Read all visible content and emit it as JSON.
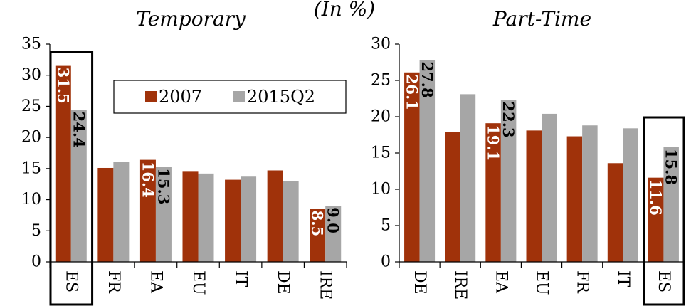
{
  "figure": {
    "title": "(In %)"
  },
  "colors": {
    "y2007": "#A0320A",
    "y2015": "#A6A6A6"
  },
  "chart_data": [
    {
      "type": "bar",
      "title": "Temporary",
      "categories": [
        "ES",
        "FR",
        "EA",
        "EU",
        "IT",
        "DE",
        "IRE"
      ],
      "series": [
        {
          "name": "2007",
          "values": [
            31.5,
            15.1,
            16.4,
            14.6,
            13.2,
            14.7,
            8.5
          ]
        },
        {
          "name": "2015Q2",
          "values": [
            24.4,
            16.1,
            15.3,
            14.2,
            13.7,
            13.0,
            9.0
          ]
        }
      ],
      "ylim": [
        0,
        35
      ],
      "yticks": [
        0,
        5,
        10,
        15,
        20,
        25,
        30,
        35
      ],
      "data_labels": [
        {
          "category": "ES",
          "series": "2007",
          "text": "31.5"
        },
        {
          "category": "ES",
          "series": "2015Q2",
          "text": "24.4"
        },
        {
          "category": "EA",
          "series": "2007",
          "text": "16.4"
        },
        {
          "category": "EA",
          "series": "2015Q2",
          "text": "15.3"
        },
        {
          "category": "IRE",
          "series": "2007",
          "text": "8.5"
        },
        {
          "category": "IRE",
          "series": "2015Q2",
          "text": "9.0"
        }
      ],
      "highlight_category": "ES",
      "legend": {
        "items": [
          "2007",
          "2015Q2"
        ],
        "placement": "top-right"
      },
      "grid": false
    },
    {
      "type": "bar",
      "title": "Part-Time",
      "categories": [
        "DE",
        "IRE",
        "EA",
        "EU",
        "FR",
        "IT",
        "ES"
      ],
      "series": [
        {
          "name": "2007",
          "values": [
            26.1,
            17.9,
            19.1,
            18.1,
            17.3,
            13.6,
            11.6
          ]
        },
        {
          "name": "2015Q2",
          "values": [
            27.8,
            23.1,
            22.3,
            20.4,
            18.8,
            18.4,
            15.8
          ]
        }
      ],
      "ylim": [
        0,
        30
      ],
      "yticks": [
        0,
        5,
        10,
        15,
        20,
        25,
        30
      ],
      "data_labels": [
        {
          "category": "DE",
          "series": "2007",
          "text": "26.1"
        },
        {
          "category": "DE",
          "series": "2015Q2",
          "text": "27.8"
        },
        {
          "category": "EA",
          "series": "2007",
          "text": "19.1"
        },
        {
          "category": "EA",
          "series": "2015Q2",
          "text": "22.3"
        },
        {
          "category": "ES",
          "series": "2007",
          "text": "11.6"
        },
        {
          "category": "ES",
          "series": "2015Q2",
          "text": "15.8"
        }
      ],
      "highlight_category": "ES",
      "legend": null,
      "grid": false
    }
  ]
}
